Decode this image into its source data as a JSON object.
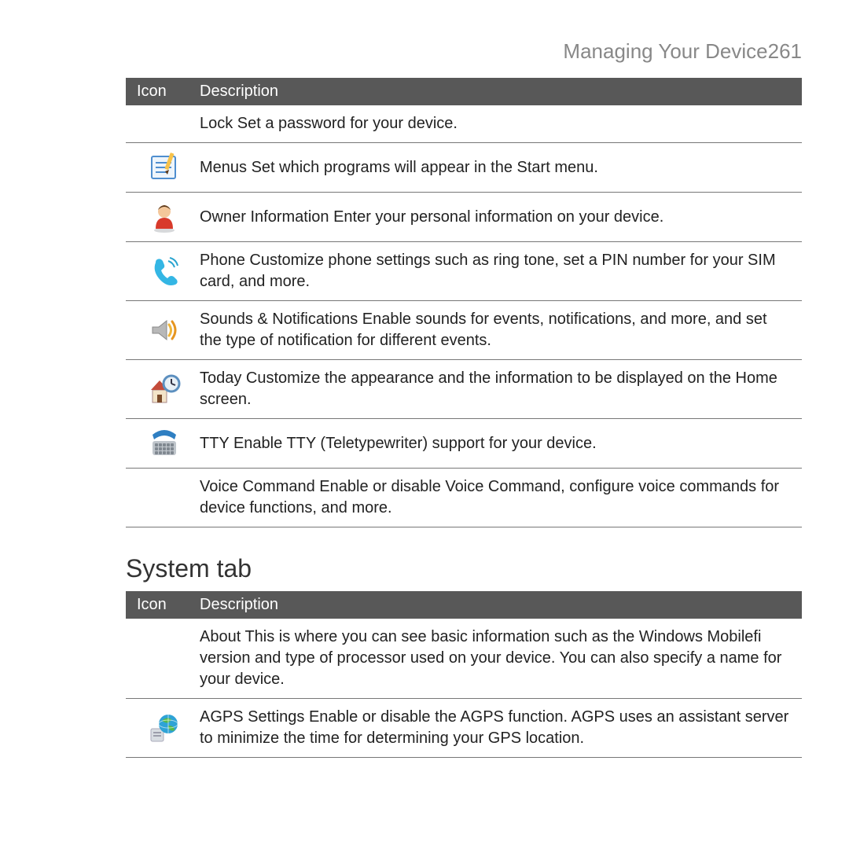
{
  "header": {
    "title": "Managing Your Device",
    "page_number": "261"
  },
  "table1": {
    "header_icon": "Icon",
    "header_desc": "Description",
    "rows": [
      {
        "icon": "none",
        "text": "Lock  Set a password for your device."
      },
      {
        "icon": "menus",
        "text": "Menus  Set which programs will appear in the Start menu."
      },
      {
        "icon": "owner",
        "text": "Owner Information   Enter your personal information on your device."
      },
      {
        "icon": "phone",
        "text": "Phone  Customize phone settings such as ring tone, set a PIN number for your SIM card, and more."
      },
      {
        "icon": "sounds",
        "text": "Sounds & Notifications  Enable sounds for events, notifications, and more, and set the type of notification for different events."
      },
      {
        "icon": "today",
        "text": "Today  Customize the appearance and the information to be displayed on the Home screen."
      },
      {
        "icon": "tty",
        "text": "TTY Enable TTY (Teletypewriter) support for your device."
      },
      {
        "icon": "none",
        "text": "Voice Command  Enable or disable Voice Command, configure voice commands for device functions, and more."
      }
    ]
  },
  "section2_title": "System tab",
  "table2": {
    "header_icon": "Icon",
    "header_desc": "Description",
    "rows": [
      {
        "icon": "none",
        "text": "About   This is where you can see basic information such as the Windows Mobilefi version and type of processor used on your device. You can also specify a name for your device."
      },
      {
        "icon": "agps",
        "text": "AGPS Settings Enable or disable the AGPS function. AGPS uses an assistant server to minimize the time for determining your GPS location."
      }
    ]
  },
  "colors": {
    "header_bg": "#585858",
    "header_fg": "#ffffff",
    "page_header_fg": "#888888",
    "body_text": "#222222",
    "rule": "#777777"
  },
  "icons": {
    "menus": {
      "note_fill": "#eef5fb",
      "note_border": "#4f8ecf",
      "pen_body": "#f7c24a",
      "pen_tip": "#5d3a1a"
    },
    "owner": {
      "head": "#f4c79a",
      "body": "#d83a2b",
      "shadow": "#9aa0a6"
    },
    "phone": {
      "fill": "#34b6e4",
      "signal": "#2aa4cf"
    },
    "sounds": {
      "speaker": "#b8b8b8",
      "wave1": "#f0b63a",
      "wave2": "#e6951f"
    },
    "today": {
      "house_roof": "#c44b3a",
      "house_wall": "#f3e4c9",
      "clock_face": "#e8f0f6",
      "clock_ring": "#5c8fbf"
    },
    "tty": {
      "handset": "#2f7fc2",
      "keys_body": "#bfc5cb",
      "key": "#808890"
    },
    "agps": {
      "globe_sea": "#2fa3d6",
      "globe_land": "#56b94a",
      "doc": "#d8dde2"
    }
  }
}
